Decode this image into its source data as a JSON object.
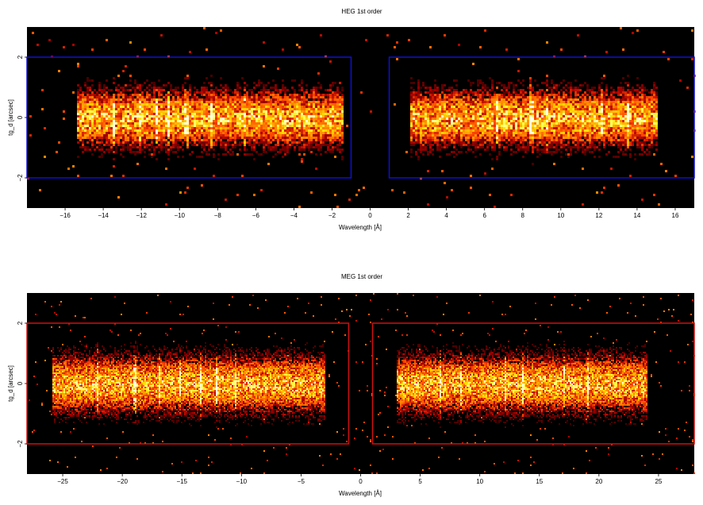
{
  "chart_data": [
    {
      "type": "heatmap",
      "title": "HEG 1st order",
      "xlabel": "Wavelength [Å]",
      "ylabel": "tg_d [arcsec]",
      "xlim": [
        -18,
        17
      ],
      "ylim": [
        -3,
        3
      ],
      "xticks": [
        -16,
        -14,
        -12,
        -10,
        -8,
        -6,
        -4,
        -2,
        0,
        2,
        4,
        6,
        8,
        10,
        12,
        14,
        16
      ],
      "xtick_labels": [
        "−16",
        "−14",
        "−12",
        "−10",
        "−8",
        "−6",
        "−4",
        "−2",
        "0",
        "2",
        "4",
        "6",
        "8",
        "10",
        "12",
        "14",
        "16"
      ],
      "yticks": [
        -2,
        0,
        2
      ],
      "ytick_labels": [
        "−2",
        "0",
        "2"
      ],
      "regions": [
        {
          "x": [
            -18,
            -1
          ],
          "y": [
            -2,
            2
          ]
        },
        {
          "x": [
            1,
            17
          ],
          "y": [
            -2,
            2
          ]
        }
      ],
      "region_color": "#1010d0",
      "background": "#000000",
      "colormap": "heat (black → red → orange → yellow → white)",
      "source_extent": [
        [
          -15.5,
          -1.5
        ],
        [
          2,
          15
        ]
      ],
      "lines": [
        -13.5,
        -12.1,
        -11.3,
        -10.6,
        -9.7,
        -8.4,
        -6.6,
        6.6,
        8.4,
        9.2,
        12.1,
        13.5
      ]
    },
    {
      "type": "heatmap",
      "title": "MEG 1st order",
      "xlabel": "Wavelength [Å]",
      "ylabel": "tg_d [arcsec]",
      "xlim": [
        -28,
        28
      ],
      "ylim": [
        -3,
        3
      ],
      "xticks": [
        -25,
        -20,
        -15,
        -10,
        -5,
        0,
        5,
        10,
        15,
        20,
        25
      ],
      "xtick_labels": [
        "−25",
        "−20",
        "−15",
        "−10",
        "−5",
        "0",
        "5",
        "10",
        "15",
        "20",
        "25"
      ],
      "yticks": [
        -2,
        0,
        2
      ],
      "ytick_labels": [
        "−2",
        "0",
        "2"
      ],
      "regions": [
        {
          "x": [
            -28,
            -1
          ],
          "y": [
            -2,
            2
          ]
        },
        {
          "x": [
            1,
            28
          ],
          "y": [
            -2,
            2
          ]
        }
      ],
      "region_color": "#d01010",
      "background": "#000000",
      "colormap": "heat (black → red → orange → yellow → white)",
      "source_extent": [
        [
          -26,
          -3
        ],
        [
          3,
          24
        ]
      ],
      "lines": [
        -22.1,
        -19,
        -16.9,
        -15.2,
        -13.5,
        -12.1,
        -10.6,
        6.6,
        8.4,
        12.1,
        13.5,
        17,
        19
      ]
    }
  ]
}
